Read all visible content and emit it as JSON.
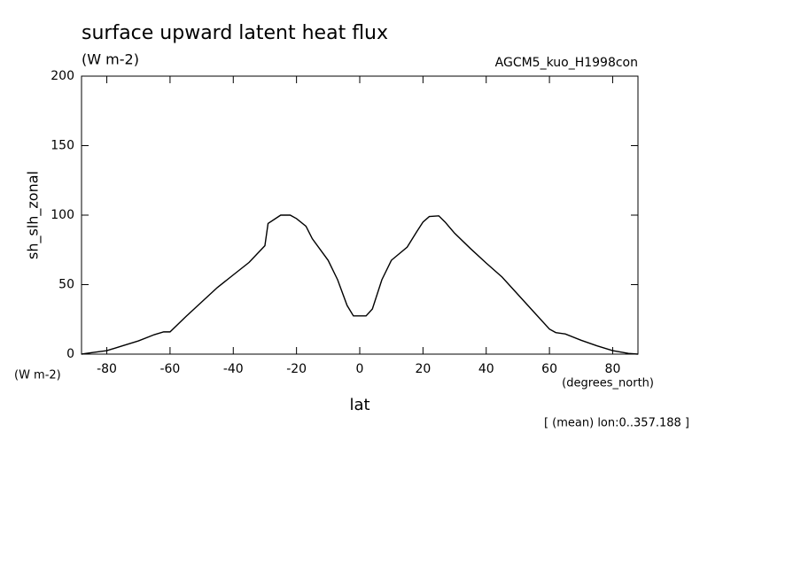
{
  "chart_data": {
    "type": "line",
    "title": "surface upward latent heat flux",
    "subtitle": "(W m-2)",
    "right_label": "AGCM5_kuo_H1998con",
    "ylabel": "sh_slh_zonal",
    "yunit": "(W m-2)",
    "xlabel": "lat",
    "xunit": "(degrees_north)",
    "note": "[ (mean) lon:0..357.188 ]",
    "x": [
      -88,
      -85,
      -80,
      -75,
      -70,
      -65,
      -62,
      -60,
      -55,
      -50,
      -45,
      -40,
      -35,
      -30,
      -29,
      -25,
      -22,
      -20,
      -17,
      -15,
      -10,
      -7,
      -4,
      -2,
      0,
      2,
      4,
      7,
      10,
      15,
      18,
      20,
      22,
      25,
      27,
      30,
      35,
      40,
      45,
      50,
      55,
      60,
      62,
      65,
      70,
      75,
      80,
      85,
      88
    ],
    "series": [
      {
        "name": "sh_slh_zonal",
        "color": "#000000",
        "values": [
          0,
          1,
          2.5,
          6,
          9.5,
          14,
          16,
          16,
          27,
          37.5,
          48,
          57,
          66,
          78,
          94,
          100,
          100,
          97.5,
          92,
          83,
          67.5,
          53.5,
          35,
          27.5,
          27.5,
          27.5,
          32.5,
          53.5,
          67.5,
          77,
          88,
          95,
          99,
          99.5,
          95,
          87,
          76,
          65.5,
          55.5,
          43,
          30.5,
          18,
          15.5,
          14.5,
          10,
          6,
          2.5,
          0.5,
          0
        ]
      }
    ],
    "xlim": [
      -88,
      88
    ],
    "ylim": [
      0,
      200
    ],
    "xticks": [
      -80,
      -60,
      -40,
      -20,
      0,
      20,
      40,
      60,
      80
    ],
    "yticks": [
      0,
      50,
      100,
      150,
      200
    ],
    "grid": false
  }
}
